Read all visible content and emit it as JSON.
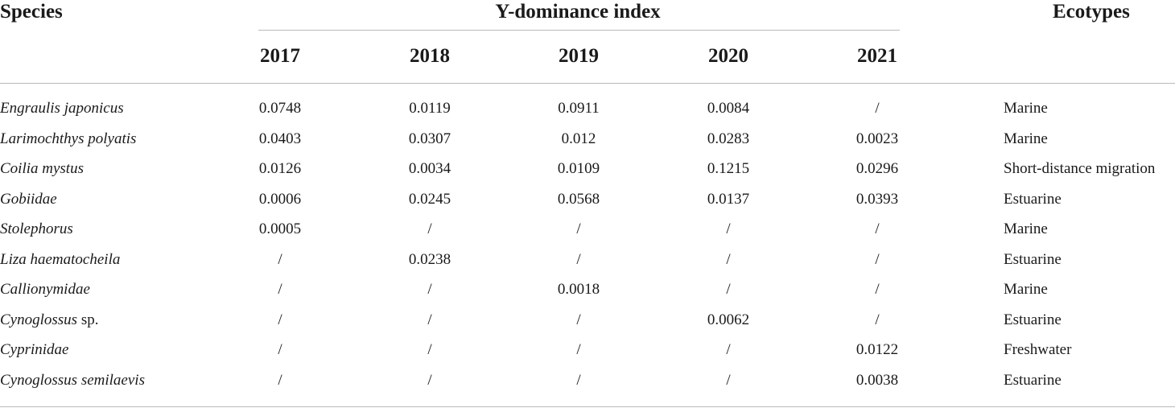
{
  "table": {
    "headers": {
      "species": "Species",
      "group": "Y-dominance index",
      "years": [
        "2017",
        "2018",
        "2019",
        "2020",
        "2021"
      ],
      "ecotypes": "Ecotypes"
    },
    "rows": [
      {
        "species": "Engraulis japonicus",
        "suffix": "",
        "values": [
          "0.0748",
          "0.0119",
          "0.0911",
          "0.0084",
          "/"
        ],
        "ecotype": "Marine"
      },
      {
        "species": "Larimochthys polyatis",
        "suffix": "",
        "values": [
          "0.0403",
          "0.0307",
          "0.012",
          "0.0283",
          "0.0023"
        ],
        "ecotype": "Marine"
      },
      {
        "species": "Coilia mystus",
        "suffix": "",
        "values": [
          "0.0126",
          "0.0034",
          "0.0109",
          "0.1215",
          "0.0296"
        ],
        "ecotype": "Short-distance migration"
      },
      {
        "species": "Gobiidae",
        "suffix": "",
        "values": [
          "0.0006",
          "0.0245",
          "0.0568",
          "0.0137",
          "0.0393"
        ],
        "ecotype": "Estuarine"
      },
      {
        "species": "Stolephorus",
        "suffix": "",
        "values": [
          "0.0005",
          "/",
          "/",
          "/",
          "/"
        ],
        "ecotype": "Marine"
      },
      {
        "species": "Liza haematocheila",
        "suffix": "",
        "values": [
          "/",
          "0.0238",
          "/",
          "/",
          "/"
        ],
        "ecotype": "Estuarine"
      },
      {
        "species": "Callionymidae",
        "suffix": "",
        "values": [
          "/",
          "/",
          "0.0018",
          "/",
          "/"
        ],
        "ecotype": "Marine"
      },
      {
        "species": "Cynoglossus",
        "suffix": " sp.",
        "values": [
          "/",
          "/",
          "/",
          "0.0062",
          "/"
        ],
        "ecotype": "Estuarine"
      },
      {
        "species": "Cyprinidae",
        "suffix": "",
        "values": [
          "/",
          "/",
          "/",
          "/",
          "0.0122"
        ],
        "ecotype": "Freshwater"
      },
      {
        "species": "Cynoglossus semilaevis",
        "suffix": "",
        "values": [
          "/",
          "/",
          "/",
          "/",
          "0.0038"
        ],
        "ecotype": "Estuarine"
      }
    ]
  }
}
